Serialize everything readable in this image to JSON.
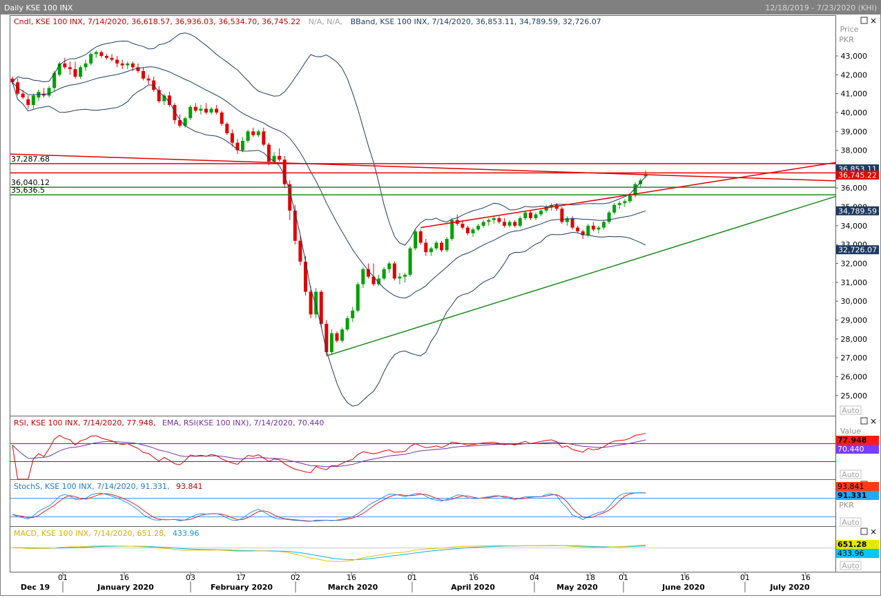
{
  "window": {
    "title": "Daily KSE 100 INX",
    "date_range": "12/18/2019 - 7/23/2020 (KHI)"
  },
  "colors": {
    "frame": "#808080",
    "bull_candle": "#00a000",
    "bear_candle": "#e00000",
    "bband": "#1e3a5f",
    "rsi_line": "#e00000",
    "rsi_ema": "#7030a0",
    "stoch_k": "#1e90ff",
    "stoch_d": "#e02020",
    "macd_line": "#e6c200",
    "macd_signal": "#00b4e6",
    "trend_red": "#e00000",
    "trend_green": "#1a8a1a"
  },
  "panes": {
    "price": {
      "legend_cndl": "Cndl, KSE 100 INX, 7/14/2020, 36,618.57, 36,936.03, 36,534.70, 36,745.22",
      "legend_na": "N/A, N/A,",
      "legend_bband": "BBand, KSE 100 INX, 7/14/2020, 36,853.11, 34,789.59, 32,726.07",
      "axis_title_1": "Price",
      "axis_title_2": "PKR",
      "auto": "Auto",
      "tags": {
        "bb_upper": "36,853.11",
        "close": "36,745.22",
        "bb_mid": "34,789.59",
        "bb_lower": "32,726.07"
      },
      "level_labels": [
        {
          "text": "37,287.68",
          "value": 37287.68
        },
        {
          "text": "36,040.12",
          "value": 36040.12
        },
        {
          "text": "35,636.5",
          "value": 35636.5
        }
      ]
    },
    "rsi": {
      "legend_a": "RSI, KSE 100 INX, 7/14/2020, 77.948,",
      "legend_b": "EMA, RSI(KSE 100 INX), 7/14/2020, 70.440",
      "axis_title": "Value",
      "tag_rsi": "77.948",
      "tag_ema": "70.440",
      "auto": "Auto"
    },
    "stoch": {
      "legend_a": "StochS, KSE 100 INX, 7/14/2020, 91.331,",
      "legend_b": "93.841",
      "axis_title": "PKR",
      "tag_d": "93.841",
      "tag_k": "91.331",
      "auto": "Auto"
    },
    "macd": {
      "legend_a": "MACD, KSE 100 INX, 7/14/2020, 651.28,",
      "legend_b": "433.96",
      "tag_macd": "651.28",
      "tag_signal": "433.96",
      "auto": "Auto"
    }
  },
  "x_axis": {
    "day_ticks": [
      "01",
      "16",
      "03",
      "17",
      "02",
      "16",
      "01",
      "16",
      "04",
      "18",
      "01",
      "16",
      "01",
      "16"
    ],
    "months": [
      "Dec 19",
      "January 2020",
      "February 2020",
      "March 2020",
      "April 2020",
      "May 2020",
      "June 2020",
      "July 2020"
    ]
  },
  "chart_data": {
    "type": "candlestick",
    "title": "Daily KSE 100 INX",
    "ylabel": "Price PKR",
    "ylim": [
      24400,
      43500
    ],
    "y_ticks": [
      "43,000",
      "42,000",
      "41,000",
      "40,000",
      "39,000",
      "38,000",
      "37,000",
      "36,000",
      "35,000",
      "34,000",
      "33,000",
      "32,000",
      "31,000",
      "30,000",
      "29,000",
      "28,000",
      "27,000",
      "26,000",
      "25,000"
    ],
    "last": {
      "date": "7/14/2020",
      "open": 36618.57,
      "high": 36936.03,
      "low": 36534.7,
      "close": 36745.22
    },
    "bband_last": {
      "upper": 36853.11,
      "middle": 34789.59,
      "lower": 32726.07
    },
    "candles": [
      [
        41800,
        41900,
        41500,
        41600
      ],
      [
        41600,
        41800,
        40900,
        41000
      ],
      [
        41000,
        41200,
        40700,
        40800
      ],
      [
        40700,
        40900,
        40200,
        40400
      ],
      [
        40400,
        41000,
        40200,
        40900
      ],
      [
        40800,
        41200,
        40600,
        41100
      ],
      [
        41000,
        41300,
        40800,
        40900
      ],
      [
        40900,
        41400,
        40800,
        41300
      ],
      [
        41300,
        42200,
        41100,
        42100
      ],
      [
        42000,
        42700,
        41900,
        42600
      ],
      [
        42600,
        42900,
        42300,
        42400
      ],
      [
        42400,
        42700,
        42000,
        42300
      ],
      [
        42300,
        42700,
        41800,
        41900
      ],
      [
        41900,
        42500,
        41800,
        42400
      ],
      [
        42400,
        42800,
        42200,
        42600
      ],
      [
        42600,
        43200,
        42500,
        43100
      ],
      [
        43100,
        43300,
        42900,
        43200
      ],
      [
        43200,
        43300,
        42900,
        43000
      ],
      [
        43000,
        43100,
        42800,
        42900
      ],
      [
        42900,
        43100,
        42700,
        42800
      ],
      [
        42800,
        43000,
        42400,
        42600
      ],
      [
        42600,
        42800,
        42300,
        42500
      ],
      [
        42500,
        42700,
        42300,
        42600
      ],
      [
        42600,
        42700,
        42200,
        42400
      ],
      [
        42400,
        42600,
        42100,
        42200
      ],
      [
        42200,
        42400,
        41700,
        41800
      ],
      [
        41800,
        42000,
        41500,
        41700
      ],
      [
        41700,
        41900,
        41100,
        41200
      ],
      [
        41200,
        41400,
        40500,
        40600
      ],
      [
        40600,
        41000,
        40400,
        40900
      ],
      [
        40900,
        41100,
        40300,
        40400
      ],
      [
        40400,
        40500,
        39400,
        39600
      ],
      [
        39600,
        39900,
        39200,
        39300
      ],
      [
        39300,
        39800,
        39200,
        39700
      ],
      [
        39700,
        40400,
        39600,
        40300
      ],
      [
        40300,
        40500,
        40000,
        40100
      ],
      [
        40100,
        40400,
        39900,
        40200
      ],
      [
        40200,
        40500,
        39900,
        40000
      ],
      [
        40000,
        40300,
        39900,
        40200
      ],
      [
        40200,
        40400,
        39900,
        40000
      ],
      [
        40000,
        40100,
        39300,
        39400
      ],
      [
        39400,
        39500,
        38800,
        38900
      ],
      [
        38900,
        39100,
        38200,
        38400
      ],
      [
        38400,
        38600,
        37800,
        38000
      ],
      [
        38000,
        38700,
        37900,
        38500
      ],
      [
        38500,
        39100,
        38400,
        39000
      ],
      [
        39000,
        39200,
        38700,
        38800
      ],
      [
        38800,
        39100,
        38700,
        39000
      ],
      [
        39000,
        39200,
        38200,
        38300
      ],
      [
        38300,
        38400,
        37200,
        37400
      ],
      [
        37400,
        37900,
        37300,
        37700
      ],
      [
        37700,
        38100,
        37400,
        37500
      ],
      [
        37500,
        37700,
        36000,
        36200
      ],
      [
        36200,
        36400,
        34300,
        34800
      ],
      [
        34800,
        35100,
        33000,
        33200
      ],
      [
        33200,
        33500,
        31900,
        32100
      ],
      [
        32100,
        32400,
        30300,
        30500
      ],
      [
        30500,
        30800,
        29100,
        29300
      ],
      [
        29300,
        30700,
        29100,
        30500
      ],
      [
        30500,
        30600,
        28600,
        28800
      ],
      [
        28800,
        29000,
        27100,
        27300
      ],
      [
        27300,
        28500,
        27200,
        28300
      ],
      [
        28300,
        28400,
        27800,
        27900
      ],
      [
        27900,
        28600,
        27800,
        28500
      ],
      [
        28500,
        29200,
        28400,
        29100
      ],
      [
        29100,
        29700,
        28900,
        29500
      ],
      [
        29500,
        31000,
        29400,
        30900
      ],
      [
        30900,
        31800,
        30700,
        31700
      ],
      [
        31700,
        32000,
        31200,
        31300
      ],
      [
        31300,
        32000,
        30800,
        30900
      ],
      [
        30900,
        31400,
        30800,
        31200
      ],
      [
        31200,
        31800,
        31100,
        31700
      ],
      [
        31700,
        32100,
        31500,
        32000
      ],
      [
        32000,
        32100,
        31100,
        31200
      ],
      [
        31200,
        31500,
        30900,
        31300
      ],
      [
        31300,
        31500,
        31000,
        31400
      ],
      [
        31400,
        32900,
        31300,
        32800
      ],
      [
        32800,
        33800,
        32700,
        33700
      ],
      [
        33700,
        33800,
        33000,
        33100
      ],
      [
        33100,
        33300,
        32400,
        32600
      ],
      [
        32600,
        32900,
        32400,
        32800
      ],
      [
        32800,
        33200,
        32700,
        33100
      ],
      [
        33100,
        33200,
        32600,
        32700
      ],
      [
        32700,
        33400,
        32600,
        33300
      ],
      [
        33300,
        34400,
        33200,
        34300
      ],
      [
        34300,
        34600,
        34000,
        34100
      ],
      [
        34100,
        34300,
        33800,
        33900
      ],
      [
        33900,
        34000,
        33500,
        33600
      ],
      [
        33600,
        33900,
        33400,
        33800
      ],
      [
        33800,
        34100,
        33700,
        34000
      ],
      [
        34000,
        34300,
        33900,
        34200
      ],
      [
        34200,
        34400,
        34000,
        34300
      ],
      [
        34300,
        34500,
        34100,
        34400
      ],
      [
        34400,
        34500,
        34100,
        34200
      ],
      [
        34200,
        34400,
        33900,
        34000
      ],
      [
        34000,
        34300,
        33900,
        34200
      ],
      [
        34200,
        34300,
        33900,
        34000
      ],
      [
        34000,
        34500,
        33900,
        34400
      ],
      [
        34400,
        34800,
        34300,
        34700
      ],
      [
        34700,
        34800,
        34300,
        34400
      ],
      [
        34400,
        34700,
        34300,
        34600
      ],
      [
        34600,
        34900,
        34500,
        34800
      ],
      [
        34800,
        35100,
        34700,
        35000
      ],
      [
        35000,
        35200,
        34800,
        35100
      ],
      [
        35100,
        35200,
        34800,
        34900
      ],
      [
        34900,
        35000,
        34100,
        34200
      ],
      [
        34200,
        34500,
        34000,
        34400
      ],
      [
        34400,
        34500,
        33800,
        33900
      ],
      [
        33900,
        34000,
        33600,
        33700
      ],
      [
        33700,
        33800,
        33300,
        33500
      ],
      [
        33500,
        34100,
        33400,
        34000
      ],
      [
        34000,
        34200,
        33700,
        33800
      ],
      [
        33800,
        34000,
        33600,
        33900
      ],
      [
        33900,
        34300,
        33800,
        34200
      ],
      [
        34200,
        34800,
        34100,
        34700
      ],
      [
        34700,
        35200,
        34600,
        35100
      ],
      [
        35100,
        35300,
        34900,
        35200
      ],
      [
        35200,
        35400,
        35000,
        35300
      ],
      [
        35300,
        35700,
        35200,
        35600
      ],
      [
        35600,
        36300,
        35500,
        36200
      ],
      [
        36200,
        36500,
        36000,
        36400
      ],
      [
        36618.57,
        36936.03,
        36534.7,
        36745.22
      ]
    ],
    "rsi_last": 77.948,
    "rsi_ema_last": 70.44,
    "stoch_k_last": 91.331,
    "stoch_d_last": 93.841,
    "macd_last": 651.28,
    "macd_signal_last": 433.96
  }
}
